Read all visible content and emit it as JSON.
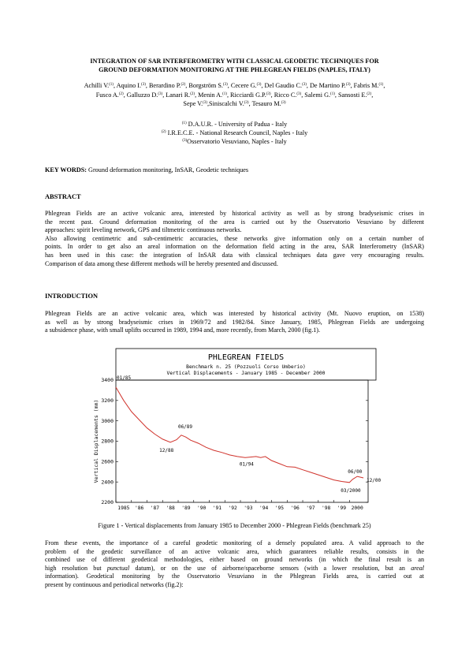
{
  "paper": {
    "title_line1": "INTEGRATION OF SAR INTERFEROMETRY WITH CLASSICAL GEODETIC TECHNIQUES FOR",
    "title_line2": "GROUND DEFORMATION MONITORING AT THE PHLEGREAN FIELDS (NAPLES, ITALY)",
    "authors": [
      [
        {
          "name": "Achilli V.",
          "sup": "(1)"
        },
        {
          "name": "Aquino I.",
          "sup": "(3)"
        },
        {
          "name": "Berardino P.",
          "sup": "(2)"
        },
        {
          "name": "Borgström S.",
          "sup": "(3)"
        },
        {
          "name": "Cecere G.",
          "sup": "(3)"
        },
        {
          "name": "Del Gaudio C.",
          "sup": "(3)"
        },
        {
          "name": "De Martino P.",
          "sup": "(3)"
        },
        {
          "name": "Fabris M.",
          "sup": "(1)"
        }
      ],
      [
        {
          "name": "Fusco A.",
          "sup": "(2)"
        },
        {
          "name": "Galluzzo D.",
          "sup": "(3)"
        },
        {
          "name": "Lanari R.",
          "sup": "(2)"
        },
        {
          "name": "Menin A.",
          "sup": "(1)"
        },
        {
          "name": "Ricciardi G.P.",
          "sup": "(3)"
        },
        {
          "name": "Ricco C.",
          "sup": "(3)"
        },
        {
          "name": "Salemi G.",
          "sup": "(1)"
        },
        {
          "name": "Sansosti E.",
          "sup": "(2)"
        }
      ],
      [
        {
          "name": "Sepe V.",
          "sup": "(3)"
        },
        {
          "name": "Siniscalchi V.",
          "sup": "(3)"
        },
        {
          "name": "Tesauro M.",
          "sup": "(3)"
        }
      ]
    ],
    "affiliations": [
      {
        "sup": "(1)",
        "text": " D.A.U.R. - University of Padua - Italy"
      },
      {
        "sup": "(2)",
        "text": " I.R.E.C.E. - National Research Council, Naples - Italy"
      },
      {
        "sup": "(3)",
        "text": "Osservatorio Vesuviano, Naples - Italy"
      }
    ],
    "keywords_label": "KEY WORDS:",
    "keywords_text": " Ground deformation monitoring, InSAR, Geodetic techniques",
    "abstract_heading": "ABSTRACT",
    "abstract_lines": [
      "Phlegrean Fields are an active volcanic area, interested by historical activity as well as by strong bradyseismic crises in",
      "the recent past. Ground deformation monitoring of the area is carried out by the Osservatorio Vesuviano by different",
      "approaches: spirit leveling network, GPS and tiltmetric continuous networks.",
      "Also allowing centimetric and sub-centimetric accuracies, these networks give information only on a certain number of",
      "points. In order to get also an areal information on the deformation field acting in the area, SAR Interferometry (InSAR)",
      "has been used in this case: the integration of InSAR data with classical techniques data gave very encouraging results.",
      "Comparison of data among these different methods will be hereby presented and discussed."
    ],
    "intro_heading": "INTRODUCTION",
    "intro_lines": [
      "Phlegrean Fields are an active volcanic area, which was interested by historical activity (Mt. Nuovo eruption, on 1538)",
      "as well as by strong bradyseismic crises in 1969/72 and 1982/84. Since January, 1985, Phlegrean Fields are undergoing",
      "a subsidence phase, with small uplifts occurred in 1989, 1994 and, more recently, from March, 2000 (fig.1)."
    ],
    "figure_caption": "Figure 1 - Vertical displacements from January 1985 to December 2000 - Phlegrean Fields (benchmark 25)",
    "after_lines": [
      {
        "text": "From these events, the importance of a careful geodetic monitoring of a densely populated area. A valid approach to the"
      },
      {
        "text": "problem of the geodetic surveillance of an active volcanic area, which guarantees reliable results, consists in the"
      },
      {
        "text": "combined use of different geodetical methodologies, either based on ground networks (in which the final result is an"
      },
      {
        "pre": "high resolution but ",
        "em": "punctual",
        "post": " datum), or on the use of airborne/spaceborne sensors (with a lower resolution, but an ",
        "em2": "areal"
      },
      {
        "text": "information). Geodetical monitoring by the Osservatorio Vesuviano in the Phlegrean Fields area, is carried out at"
      },
      {
        "text": "present by continuous and periodical networks (fig.2):"
      }
    ]
  },
  "chart_data": {
    "type": "line",
    "title": "PHLEGREAN FIELDS",
    "subtitle1": "Benchmark n. 25 (Pozzuoli Corso Umberio)",
    "subtitle2": "Vertical Displacements - January 1985 - December 2000",
    "ylabel": "Vertical Displacements (mm)",
    "xlabel": "",
    "ylim": [
      2200,
      3400
    ],
    "yticks": [
      2200,
      2400,
      2600,
      2800,
      3000,
      3200,
      3400
    ],
    "xlim": [
      1985,
      2001.2
    ],
    "xtick_labels": [
      "1985",
      "'86",
      "'87",
      "'88",
      "'89",
      "'90",
      "'91",
      "'92",
      "'93",
      "'94",
      "'95",
      "'96",
      "'97",
      "'98",
      "'99",
      "2000"
    ],
    "x": [
      1985.0,
      1985.5,
      1986.0,
      1986.5,
      1987.0,
      1987.5,
      1988.0,
      1988.5,
      1988.9,
      1989.2,
      1989.5,
      1989.8,
      1990.3,
      1990.8,
      1991.3,
      1991.8,
      1992.3,
      1992.8,
      1993.3,
      1993.7,
      1994.0,
      1994.3,
      1994.6,
      1995.0,
      1995.5,
      1996.0,
      1996.5,
      1997.0,
      1997.5,
      1998.0,
      1998.5,
      1999.0,
      1999.5,
      2000.0,
      2000.2,
      2000.5,
      2000.9
    ],
    "values": [
      3330,
      3200,
      3090,
      3010,
      2930,
      2870,
      2820,
      2790,
      2815,
      2860,
      2840,
      2810,
      2780,
      2740,
      2710,
      2690,
      2665,
      2650,
      2640,
      2645,
      2650,
      2640,
      2650,
      2610,
      2580,
      2550,
      2545,
      2520,
      2495,
      2470,
      2445,
      2420,
      2405,
      2395,
      2425,
      2455,
      2440
    ],
    "annotations": [
      {
        "label": "01/85",
        "x": 1985.0,
        "y": 3330
      },
      {
        "label": "12/88",
        "x": 1988.5,
        "y": 2790
      },
      {
        "label": "06/89",
        "x": 1989.2,
        "y": 2860
      },
      {
        "label": "01/94",
        "x": 1993.7,
        "y": 2645
      },
      {
        "label": "03/2000",
        "x": 2000.0,
        "y": 2395
      },
      {
        "label": "06/00",
        "x": 2000.2,
        "y": 2425
      },
      {
        "label": "12/00",
        "x": 2000.9,
        "y": 2440
      }
    ],
    "grid": false,
    "legend": "none",
    "colors": {
      "line": "#d0332c",
      "frame": "#000000"
    }
  }
}
